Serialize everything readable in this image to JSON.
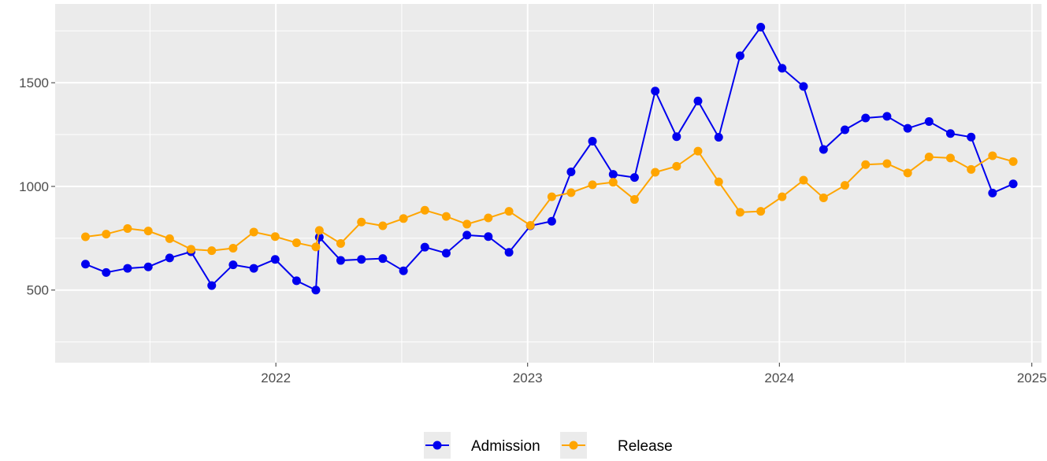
{
  "chart_data": {
    "type": "line",
    "title": "",
    "xlabel": "",
    "ylabel": "",
    "xlim": [
      "2021-02-15",
      "2025-01-15"
    ],
    "ylim": [
      150,
      1880
    ],
    "grid": true,
    "legend_position": "bottom",
    "x_ticks": [
      "2022-01-01",
      "2023-01-01",
      "2024-01-01",
      "2025-01-01"
    ],
    "x_tick_labels": [
      "2022",
      "2023",
      "2024",
      "2025"
    ],
    "y_ticks": [
      500,
      1000,
      1500
    ],
    "y_tick_labels": [
      "500",
      "1000",
      "1500"
    ],
    "x": [
      "2021-03-31",
      "2021-04-30",
      "2021-05-31",
      "2021-06-30",
      "2021-07-31",
      "2021-08-31",
      "2021-09-30",
      "2021-10-31",
      "2021-11-30",
      "2021-12-31",
      "2022-01-31",
      "2022-02-28",
      "2022-03-05",
      "2022-04-05",
      "2022-05-05",
      "2022-06-05",
      "2022-07-05",
      "2022-08-05",
      "2022-09-05",
      "2022-10-05",
      "2022-11-05",
      "2022-12-05",
      "2023-01-05",
      "2023-02-05",
      "2023-03-05",
      "2023-04-05",
      "2023-05-05",
      "2023-06-05",
      "2023-07-05",
      "2023-08-05",
      "2023-09-05",
      "2023-10-05",
      "2023-11-05",
      "2023-12-05",
      "2024-01-05",
      "2024-02-05",
      "2024-03-05",
      "2024-04-05",
      "2024-05-05",
      "2024-06-05",
      "2024-07-05",
      "2024-08-05",
      "2024-09-05",
      "2024-10-05",
      "2024-11-05",
      "2024-12-05"
    ],
    "series": [
      {
        "name": "Admission",
        "color": "#0000ee",
        "values": [
          625,
          585,
          605,
          612,
          655,
          685,
          522,
          622,
          605,
          648,
          545,
          500,
          755,
          643,
          648,
          652,
          593,
          707,
          678,
          765,
          758,
          682,
          810,
          832,
          1070,
          1218,
          1058,
          1043,
          1460,
          1240,
          1412,
          1237,
          1630,
          1768,
          1570,
          1482,
          1178,
          1273,
          1330,
          1338,
          1280,
          1313,
          1255,
          1238,
          968,
          1012
        ]
      },
      {
        "name": "Release",
        "color": "#ffa500",
        "values": [
          757,
          770,
          797,
          785,
          748,
          697,
          690,
          702,
          780,
          758,
          728,
          708,
          788,
          725,
          828,
          810,
          845,
          885,
          855,
          818,
          848,
          880,
          812,
          950,
          970,
          1008,
          1020,
          937,
          1068,
          1097,
          1170,
          1022,
          875,
          880,
          950,
          1030,
          945,
          1005,
          1105,
          1110,
          1065,
          1142,
          1137,
          1082,
          1148,
          1120
        ]
      }
    ]
  }
}
